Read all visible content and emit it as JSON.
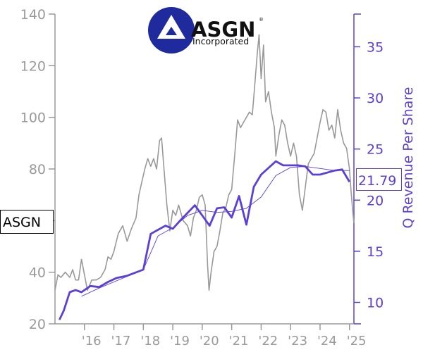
{
  "logo": {
    "name": "ASGN",
    "subtitle": "Incorporated",
    "registered": "®"
  },
  "ticker_label": "ASGN",
  "callout_value": "21.79",
  "colors": {
    "price": "#999999",
    "revenue": "#5b3fd6",
    "left_axis": "#9a9a9a",
    "logo_blue": "#1f2a9c"
  },
  "chart_data": {
    "type": "line",
    "x_range": [
      2015.0,
      2025.15
    ],
    "x_ticks": [
      {
        "x": 2016.0,
        "label": "'16"
      },
      {
        "x": 2017.0,
        "label": "'17"
      },
      {
        "x": 2018.0,
        "label": "'18"
      },
      {
        "x": 2019.0,
        "label": "'19"
      },
      {
        "x": 2020.0,
        "label": "'20"
      },
      {
        "x": 2021.0,
        "label": "'21"
      },
      {
        "x": 2022.0,
        "label": "'22"
      },
      {
        "x": 2023.0,
        "label": "'23"
      },
      {
        "x": 2024.0,
        "label": "'24"
      },
      {
        "x": 2025.0,
        "label": "'25"
      }
    ],
    "y_left": {
      "range": [
        20,
        140
      ],
      "ticks": [
        20,
        40,
        60,
        80,
        100,
        120,
        140
      ],
      "labels": [
        "20",
        "40",
        "60",
        "80",
        "100",
        "120",
        "140"
      ]
    },
    "y_right": {
      "label": "Q Revenue Per Share",
      "range": [
        7.9,
        38.2
      ],
      "ticks": [
        10,
        15,
        20,
        25,
        30,
        35
      ],
      "labels": [
        "10",
        "15",
        "20",
        "25",
        "30",
        "35"
      ]
    },
    "series": [
      {
        "axis": "left",
        "points": [
          [
            2015.0,
            33
          ],
          [
            2015.1,
            39
          ],
          [
            2015.2,
            38
          ],
          [
            2015.35,
            40
          ],
          [
            2015.5,
            38
          ],
          [
            2015.6,
            41
          ],
          [
            2015.7,
            37
          ],
          [
            2015.8,
            37
          ],
          [
            2015.9,
            45
          ],
          [
            2016.0,
            39
          ],
          [
            2016.1,
            33
          ],
          [
            2016.25,
            37
          ],
          [
            2016.4,
            37
          ],
          [
            2016.55,
            38
          ],
          [
            2016.7,
            41
          ],
          [
            2016.8,
            46
          ],
          [
            2016.9,
            45
          ],
          [
            2017.0,
            48
          ],
          [
            2017.15,
            55
          ],
          [
            2017.3,
            58
          ],
          [
            2017.45,
            52
          ],
          [
            2017.6,
            57
          ],
          [
            2017.75,
            61
          ],
          [
            2017.85,
            70
          ],
          [
            2017.95,
            75
          ],
          [
            2018.05,
            80
          ],
          [
            2018.15,
            84
          ],
          [
            2018.25,
            81
          ],
          [
            2018.35,
            84
          ],
          [
            2018.45,
            80
          ],
          [
            2018.55,
            91
          ],
          [
            2018.62,
            92
          ],
          [
            2018.7,
            80
          ],
          [
            2018.8,
            66
          ],
          [
            2018.9,
            56
          ],
          [
            2019.0,
            64
          ],
          [
            2019.1,
            62
          ],
          [
            2019.2,
            66
          ],
          [
            2019.35,
            60
          ],
          [
            2019.5,
            58
          ],
          [
            2019.6,
            54
          ],
          [
            2019.7,
            61
          ],
          [
            2019.8,
            64
          ],
          [
            2019.9,
            69
          ],
          [
            2020.0,
            70
          ],
          [
            2020.1,
            66
          ],
          [
            2020.18,
            43
          ],
          [
            2020.23,
            33
          ],
          [
            2020.3,
            40
          ],
          [
            2020.4,
            48
          ],
          [
            2020.5,
            50
          ],
          [
            2020.6,
            56
          ],
          [
            2020.7,
            63
          ],
          [
            2020.8,
            65
          ],
          [
            2020.9,
            70
          ],
          [
            2021.0,
            72
          ],
          [
            2021.1,
            85
          ],
          [
            2021.2,
            99
          ],
          [
            2021.3,
            96
          ],
          [
            2021.4,
            98
          ],
          [
            2021.5,
            100
          ],
          [
            2021.6,
            102
          ],
          [
            2021.7,
            101
          ],
          [
            2021.8,
            115
          ],
          [
            2021.87,
            125
          ],
          [
            2021.93,
            132
          ],
          [
            2022.0,
            115
          ],
          [
            2022.08,
            128
          ],
          [
            2022.15,
            106
          ],
          [
            2022.25,
            110
          ],
          [
            2022.35,
            102
          ],
          [
            2022.45,
            96
          ],
          [
            2022.5,
            85
          ],
          [
            2022.6,
            93
          ],
          [
            2022.7,
            99
          ],
          [
            2022.8,
            97
          ],
          [
            2022.9,
            90
          ],
          [
            2023.0,
            85
          ],
          [
            2023.1,
            90
          ],
          [
            2023.2,
            85
          ],
          [
            2023.3,
            70
          ],
          [
            2023.4,
            64
          ],
          [
            2023.5,
            73
          ],
          [
            2023.6,
            82
          ],
          [
            2023.7,
            84
          ],
          [
            2023.8,
            86
          ],
          [
            2023.9,
            92
          ],
          [
            2024.0,
            98
          ],
          [
            2024.1,
            103
          ],
          [
            2024.2,
            102
          ],
          [
            2024.3,
            95
          ],
          [
            2024.4,
            97
          ],
          [
            2024.5,
            92
          ],
          [
            2024.6,
            103
          ],
          [
            2024.7,
            95
          ],
          [
            2024.8,
            90
          ],
          [
            2024.9,
            88
          ],
          [
            2025.0,
            80
          ],
          [
            2025.05,
            72
          ],
          [
            2025.1,
            65
          ],
          [
            2025.15,
            59
          ]
        ]
      },
      {
        "axis": "right",
        "points": [
          [
            2015.15,
            8.3
          ],
          [
            2015.3,
            9.2
          ],
          [
            2015.5,
            11.0
          ],
          [
            2015.7,
            11.2
          ],
          [
            2015.9,
            11.0
          ],
          [
            2016.2,
            11.6
          ],
          [
            2016.5,
            11.5
          ],
          [
            2016.8,
            12.0
          ],
          [
            2017.1,
            12.4
          ],
          [
            2017.45,
            12.6
          ],
          [
            2018.0,
            13.2
          ],
          [
            2018.25,
            16.7
          ],
          [
            2018.75,
            17.5
          ],
          [
            2019.0,
            17.2
          ],
          [
            2019.25,
            18.0
          ],
          [
            2019.75,
            19.5
          ],
          [
            2020.25,
            17.5
          ],
          [
            2020.5,
            19.2
          ],
          [
            2020.75,
            19.3
          ],
          [
            2021.0,
            18.3
          ],
          [
            2021.25,
            20.4
          ],
          [
            2021.5,
            17.6
          ],
          [
            2021.75,
            21.3
          ],
          [
            2022.0,
            22.5
          ],
          [
            2022.5,
            23.8
          ],
          [
            2022.75,
            23.4
          ],
          [
            2023.25,
            23.4
          ],
          [
            2023.5,
            23.3
          ],
          [
            2023.75,
            22.5
          ],
          [
            2024.0,
            22.5
          ],
          [
            2024.5,
            22.9
          ],
          [
            2024.75,
            23.0
          ],
          [
            2025.0,
            21.79
          ]
        ]
      },
      {
        "axis": "right",
        "points": [
          [
            2015.9,
            10.6
          ],
          [
            2016.5,
            11.4
          ],
          [
            2017.0,
            12.0
          ],
          [
            2017.5,
            12.6
          ],
          [
            2018.0,
            13.2
          ],
          [
            2018.5,
            16.5
          ],
          [
            2019.0,
            17.3
          ],
          [
            2019.5,
            18.5
          ],
          [
            2020.0,
            19.0
          ],
          [
            2020.5,
            18.8
          ],
          [
            2021.0,
            18.9
          ],
          [
            2021.5,
            19.2
          ],
          [
            2022.0,
            20.3
          ],
          [
            2022.5,
            22.4
          ],
          [
            2023.0,
            23.2
          ],
          [
            2023.5,
            23.3
          ],
          [
            2024.0,
            23.1
          ],
          [
            2024.5,
            22.9
          ],
          [
            2025.0,
            22.9
          ]
        ]
      }
    ]
  }
}
